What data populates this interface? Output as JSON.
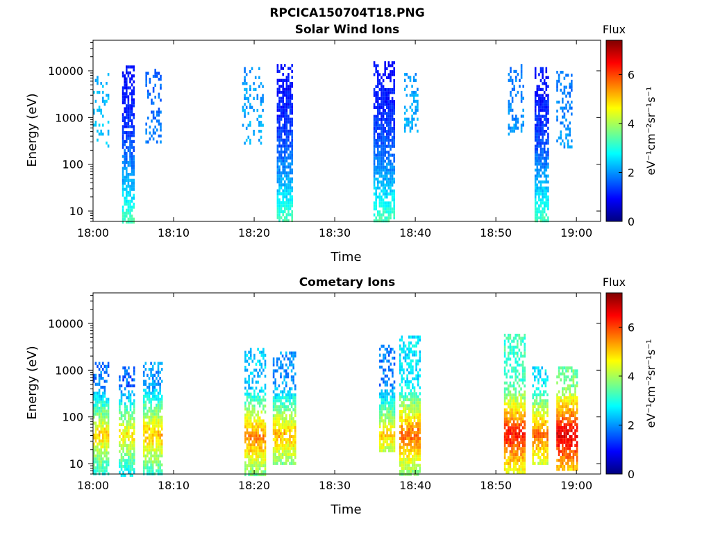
{
  "figure_title": "RPCICA150704T18.PNG",
  "chart_data": [
    {
      "type": "heatmap",
      "title": "Solar Wind Ions",
      "xlabel": "Time",
      "ylabel": "Energy (eV)",
      "x_ticks": [
        "18:00",
        "18:10",
        "18:20",
        "18:30",
        "18:40",
        "18:50",
        "19:00"
      ],
      "xlim": [
        "18:00",
        "19:03"
      ],
      "y_scale": "log",
      "y_ticks": [
        10,
        100,
        1000,
        10000
      ],
      "ylim": [
        6,
        45000
      ],
      "colorbar": {
        "label": "Flux",
        "unit": "eV⁻¹cm⁻²sr⁻¹s⁻¹",
        "range": [
          0,
          7.4
        ],
        "ticks": [
          0,
          2,
          4,
          6
        ],
        "colormap": "jet"
      },
      "bursts": [
        {
          "t_start": "18:00.0",
          "t_end": "18:02.0",
          "e_min": 250,
          "e_max": 9000,
          "flux": 2.2,
          "density": 0.25
        },
        {
          "t_start": "18:03.6",
          "t_end": "18:05.1",
          "e_min": 6,
          "e_max": 13000,
          "flux": 1.0,
          "density": 0.75
        },
        {
          "t_start": "18:06.5",
          "t_end": "18:08.3",
          "e_min": 300,
          "e_max": 11000,
          "flux": 1.6,
          "density": 0.3
        },
        {
          "t_start": "18:18.5",
          "t_end": "18:21.0",
          "e_min": 300,
          "e_max": 12000,
          "flux": 2.0,
          "density": 0.25
        },
        {
          "t_start": "18:22.8",
          "t_end": "18:24.8",
          "e_min": 6,
          "e_max": 14000,
          "flux": 1.0,
          "density": 0.8
        },
        {
          "t_start": "18:34.8",
          "t_end": "18:37.3",
          "e_min": 6,
          "e_max": 16000,
          "flux": 1.0,
          "density": 0.8
        },
        {
          "t_start": "18:38.6",
          "t_end": "18:40.2",
          "e_min": 450,
          "e_max": 9000,
          "flux": 2.0,
          "density": 0.35
        },
        {
          "t_start": "18:51.5",
          "t_end": "18:53.5",
          "e_min": 450,
          "e_max": 14000,
          "flux": 1.8,
          "density": 0.3
        },
        {
          "t_start": "18:54.8",
          "t_end": "18:56.5",
          "e_min": 6,
          "e_max": 12000,
          "flux": 1.0,
          "density": 0.75
        },
        {
          "t_start": "18:57.5",
          "t_end": "18:59.5",
          "e_min": 250,
          "e_max": 10000,
          "flux": 1.8,
          "density": 0.35
        }
      ]
    },
    {
      "type": "heatmap",
      "title": "Cometary Ions",
      "xlabel": "Time",
      "ylabel": "Energy (eV)",
      "x_ticks": [
        "18:00",
        "18:10",
        "18:20",
        "18:30",
        "18:40",
        "18:50",
        "19:00"
      ],
      "xlim": [
        "18:00",
        "19:03"
      ],
      "y_scale": "log",
      "y_ticks": [
        10,
        100,
        1000,
        10000
      ],
      "ylim": [
        6,
        45000
      ],
      "colorbar": {
        "label": "Flux",
        "unit": "eV⁻¹cm⁻²sr⁻¹s⁻¹",
        "range": [
          0,
          7.4
        ],
        "ticks": [
          0,
          2,
          4,
          6
        ],
        "colormap": "jet"
      },
      "bursts": [
        {
          "t_start": "18:00.0",
          "t_end": "18:02.0",
          "e_min": 6,
          "e_max": 1500,
          "e_peak": 45,
          "flux": 5.0,
          "density": 0.8
        },
        {
          "t_start": "18:03.2",
          "t_end": "18:05.0",
          "e_min": 6,
          "e_max": 1200,
          "e_peak": 45,
          "flux": 4.8,
          "density": 0.75
        },
        {
          "t_start": "18:06.2",
          "t_end": "18:08.5",
          "e_min": 6,
          "e_max": 1500,
          "e_peak": 45,
          "flux": 5.2,
          "density": 0.8
        },
        {
          "t_start": "18:18.8",
          "t_end": "18:21.3",
          "e_min": 6,
          "e_max": 3000,
          "e_peak": 40,
          "flux": 5.6,
          "density": 0.8
        },
        {
          "t_start": "18:22.3",
          "t_end": "18:25.0",
          "e_min": 10,
          "e_max": 2500,
          "e_peak": 45,
          "flux": 5.2,
          "density": 0.8
        },
        {
          "t_start": "18:35.5",
          "t_end": "18:37.3",
          "e_min": 20,
          "e_max": 3500,
          "e_peak": 45,
          "flux": 5.0,
          "density": 0.8
        },
        {
          "t_start": "18:38.0",
          "t_end": "18:40.5",
          "e_min": 6,
          "e_max": 5500,
          "e_peak": 45,
          "flux": 5.8,
          "density": 0.85
        },
        {
          "t_start": "18:51.0",
          "t_end": "18:53.5",
          "e_min": 6,
          "e_max": 6000,
          "e_peak": 45,
          "flux": 6.4,
          "density": 0.85
        },
        {
          "t_start": "18:54.5",
          "t_end": "18:56.5",
          "e_min": 10,
          "e_max": 1200,
          "e_peak": 45,
          "flux": 5.8,
          "density": 0.8
        },
        {
          "t_start": "18:57.5",
          "t_end": "19:00.0",
          "e_min": 8,
          "e_max": 1200,
          "e_peak": 45,
          "flux": 6.8,
          "density": 0.85
        }
      ]
    }
  ]
}
